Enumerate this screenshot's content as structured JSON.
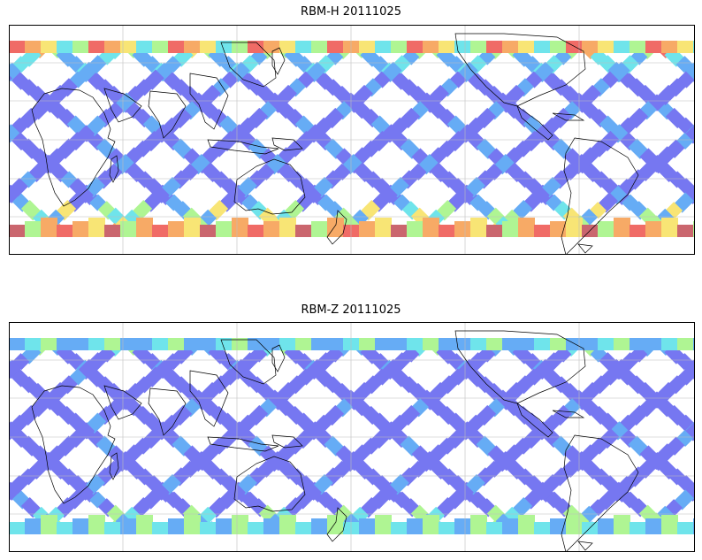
{
  "panels": [
    {
      "title": "RBM-H 20111025",
      "variant": "H"
    },
    {
      "title": "RBM-Z 20111025",
      "variant": "Z"
    }
  ],
  "colors": {
    "low": "#6b6cf0",
    "low_mid": "#5aa6f5",
    "mid": "#63e2ea",
    "mid_high": "#a9f58a",
    "high_mid": "#f8e36a",
    "high": "#f7a35a",
    "highest": "#ef5f5a",
    "extreme": "#c65a62",
    "coast": "#000000",
    "grid": "#bdbdbd",
    "frame": "#000000"
  }
}
